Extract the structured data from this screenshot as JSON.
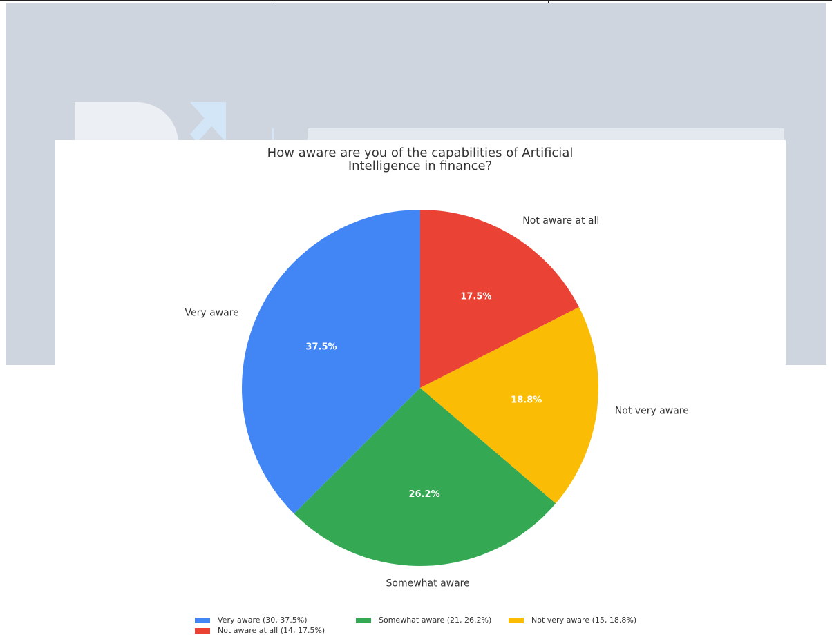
{
  "chart_data": {
    "type": "pie",
    "title_lines": [
      "How aware are you of the capabilities of Artificial",
      "Intelligence in finance?"
    ],
    "slices": [
      {
        "label": "Very aware",
        "value": 30,
        "percent": 37.5,
        "pct_text": "37.5%",
        "color": "#4285F4",
        "legend": "Very aware (30, 37.5%)"
      },
      {
        "label": "Somewhat aware",
        "value": 21,
        "percent": 26.2,
        "pct_text": "26.2%",
        "color": "#34A853",
        "legend": "Somewhat aware (21, 26.2%)"
      },
      {
        "label": "Not very aware",
        "value": 15,
        "percent": 18.8,
        "pct_text": "18.8%",
        "color": "#FBBC05",
        "legend": "Not very aware (15, 18.8%)"
      },
      {
        "label": "Not aware at all",
        "value": 14,
        "percent": 17.5,
        "pct_text": "17.5%",
        "color": "#EA4335",
        "legend": "Not aware at all (14, 17.5%)"
      }
    ],
    "start": "top",
    "direction": "counterclockwise",
    "legend_position": "bottom"
  }
}
